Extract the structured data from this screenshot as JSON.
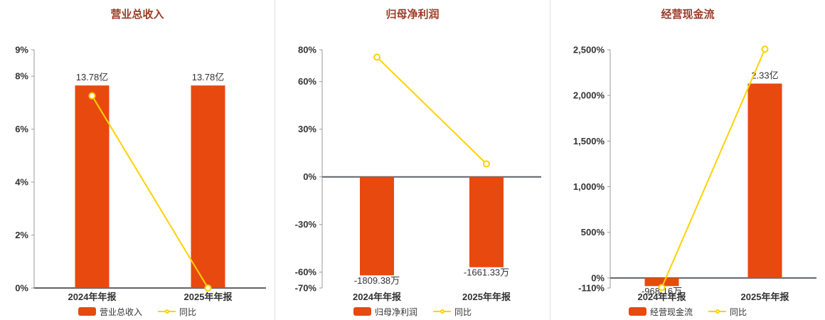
{
  "colors": {
    "background": "#ffffff",
    "bar": "#e8490f",
    "line": "#ffd200",
    "marker_fill": "#ffffff",
    "title": "#9c3a26",
    "axis_text": "#333333",
    "axis_line": "#999999",
    "zero_line": "#5f6368",
    "divider": "#e0e0e0",
    "value_text": "#333333",
    "legend_text": "#333333"
  },
  "chart_data": [
    {
      "type": "bar-line",
      "title": "营业总收入",
      "grid": false,
      "legend_position": "bottom",
      "categories": [
        "2024年年报",
        "2025年年报"
      ],
      "bar_series": {
        "name": "营业总收入",
        "value_labels": [
          "13.78亿",
          "13.78亿"
        ],
        "plotted_axis_values": [
          7.65,
          7.65
        ]
      },
      "line_series": {
        "name": "同比",
        "values_pct": [
          7.26,
          0
        ]
      },
      "ylim": [
        0,
        9
      ],
      "y_ticks": [
        {
          "value": 0,
          "label": "0%"
        },
        {
          "value": 2,
          "label": "2%"
        },
        {
          "value": 4,
          "label": "4%"
        },
        {
          "value": 6,
          "label": "6%"
        },
        {
          "value": 8,
          "label": "8%"
        },
        {
          "value": 9,
          "label": "9%"
        }
      ]
    },
    {
      "type": "bar-line",
      "title": "归母净利润",
      "grid": false,
      "legend_position": "bottom",
      "categories": [
        "2024年年报",
        "2025年年报"
      ],
      "bar_series": {
        "name": "归母净利润",
        "value_labels": [
          "-1809.38万",
          "-1661.33万"
        ],
        "plotted_axis_values": [
          -62,
          -56.9
        ]
      },
      "line_series": {
        "name": "同比",
        "values_pct": [
          75.4,
          8.18
        ]
      },
      "ylim": [
        -70,
        80
      ],
      "y_ticks": [
        {
          "value": -70,
          "label": "-70%"
        },
        {
          "value": -60,
          "label": "-60%"
        },
        {
          "value": -30,
          "label": "-30%"
        },
        {
          "value": 0,
          "label": "0%"
        },
        {
          "value": 30,
          "label": "30%"
        },
        {
          "value": 60,
          "label": "60%"
        },
        {
          "value": 80,
          "label": "80%"
        }
      ]
    },
    {
      "type": "bar-line",
      "title": "经营现金流",
      "grid": false,
      "legend_position": "bottom",
      "categories": [
        "2024年年报",
        "2025年年报"
      ],
      "bar_series": {
        "name": "经营现金流",
        "value_labels": [
          "-968.16万",
          "2.33亿"
        ],
        "plotted_axis_values": [
          -88.5,
          2130
        ]
      },
      "line_series": {
        "name": "同比",
        "values_pct": [
          -104.55,
          2506.87
        ]
      },
      "ylim": [
        -110,
        2500
      ],
      "y_ticks": [
        {
          "value": -110,
          "label": "-110%"
        },
        {
          "value": 0,
          "label": "0%"
        },
        {
          "value": 500,
          "label": "500%"
        },
        {
          "value": 1000,
          "label": "1,000%"
        },
        {
          "value": 1500,
          "label": "1,500%"
        },
        {
          "value": 2000,
          "label": "2,000%"
        },
        {
          "value": 2500,
          "label": "2,500%"
        }
      ]
    }
  ]
}
